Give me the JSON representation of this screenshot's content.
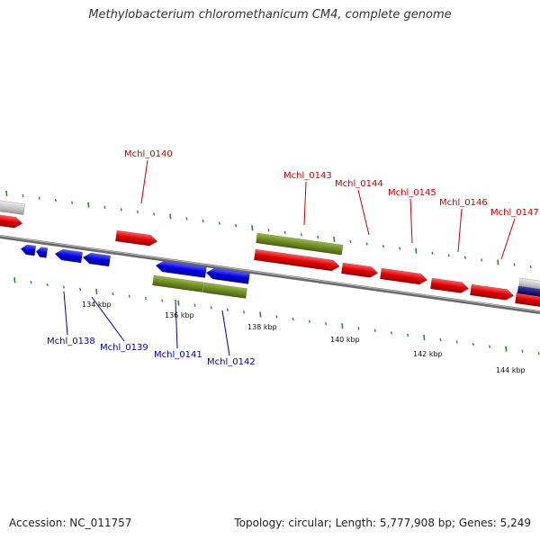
{
  "title": "Methylobacterium chloromethanicum CM4, complete genome",
  "footer": {
    "accession": "Accession: NC_011757",
    "topology": "Topology: circular; Length: 5,777,908 bp; Genes: 5,249"
  },
  "colors": {
    "forward_gene": "#e00000",
    "reverse_gene": "#0000dd",
    "forward_label": "#cc0000",
    "reverse_label": "#0000aa",
    "rna_feature": "#6e8c1e",
    "other_feature": "#c8c8c8",
    "backbone": "#777777",
    "tick": "#2a8a2a"
  },
  "kbp_labels": [
    "134 kbp",
    "136 kbp",
    "138 kbp",
    "140 kbp",
    "142 kbp",
    "144 kbp"
  ],
  "forward_gene_labels": [
    "Mchl_0140",
    "Mchl_0143",
    "Mchl_0144",
    "Mchl_0145",
    "Mchl_0146",
    "Mchl_0147"
  ],
  "reverse_gene_labels": [
    "Mchl_0138",
    "Mchl_0139",
    "Mchl_0141",
    "Mchl_0142"
  ]
}
